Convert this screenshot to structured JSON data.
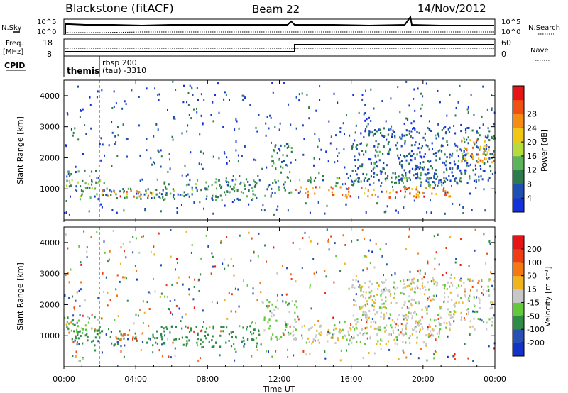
{
  "header": {
    "station": "Blackstone (fitACF)",
    "beam": "Beam 22",
    "date": "14/Nov/2012"
  },
  "nsky_panel": {
    "left_label": "N.Sky",
    "right_label": "N.Search",
    "top_tick": "10^5",
    "bottom_tick": "10^0"
  },
  "freq_panel": {
    "left_label_1": "Freq.",
    "left_label_2": "[MHz]",
    "left_tick_top": "18",
    "left_tick_bottom": "8",
    "right_label": "Nave",
    "right_tick_top": "60",
    "right_tick_bottom": "0"
  },
  "cpid_panel": {
    "label": "CPID",
    "programs": [
      {
        "name": "themis",
        "start_hour": 0.0
      },
      {
        "name": "rbsp 200",
        "start_hour": 2.0
      }
    ],
    "tau_text": "(tau) -3310"
  },
  "power_panel": {
    "ylabel": "Slant Range [km]",
    "cbar_label": "Power [dB]",
    "cbar_ticks": [
      "4",
      "8",
      "12",
      "16",
      "20",
      "24",
      "28"
    ],
    "cbar_colors": [
      "#1432dc",
      "#1e50b4",
      "#2d7a4a",
      "#5ab45a",
      "#b4dc3c",
      "#f0c814",
      "#f58c14",
      "#f05014",
      "#e61414"
    ]
  },
  "velocity_panel": {
    "ylabel": "Slant Range [km]",
    "cbar_label": "Velocity [m s⁻¹]",
    "cbar_ticks": [
      "200",
      "100",
      "50",
      "15",
      "-15",
      "-50",
      "-100",
      "-200"
    ],
    "cbar_colors": [
      "#1432c8",
      "#2850b4",
      "#2d8c46",
      "#64c83c",
      "#c8c8c8",
      "#f0b41e",
      "#f57814",
      "#f03c14",
      "#e61414"
    ]
  },
  "x_axis": {
    "label": "Time UT",
    "ticks": [
      "00:00",
      "04:00",
      "08:00",
      "12:00",
      "16:00",
      "20:00",
      "00:00"
    ]
  },
  "chart_data": [
    {
      "type": "heatmap",
      "title": "Power",
      "xlabel": "Time UT",
      "ylabel": "Slant Range [km]",
      "xlim": [
        0,
        24
      ],
      "ylim": [
        0,
        4500
      ],
      "y_ticks": [
        1000,
        2000,
        3000,
        4000
      ],
      "colorbar": {
        "label": "Power [dB]",
        "range": [
          0,
          32
        ],
        "ticks": [
          4,
          8,
          12,
          16,
          20,
          24,
          28
        ]
      },
      "bands": [
        {
          "t0": 0.0,
          "t1": 2.0,
          "r0": 1050,
          "r1": 1650,
          "level": 12
        },
        {
          "t0": 0.4,
          "t1": 4.8,
          "r0": 700,
          "r1": 1050,
          "level": 10
        },
        {
          "t0": 2.0,
          "t1": 5.0,
          "r0": 780,
          "r1": 1000,
          "level": 24
        },
        {
          "t0": 5.0,
          "t1": 11.3,
          "r0": 650,
          "r1": 1350,
          "level": 10
        },
        {
          "t0": 11.5,
          "t1": 12.7,
          "r0": 900,
          "r1": 2500,
          "level": 8
        },
        {
          "t0": 12.8,
          "t1": 21.5,
          "r0": 750,
          "r1": 1100,
          "level": 24
        },
        {
          "t0": 12.8,
          "t1": 21.5,
          "r0": 1100,
          "r1": 1400,
          "level": 10
        },
        {
          "t0": 16.0,
          "t1": 24.0,
          "r0": 1200,
          "r1": 3000,
          "level": 6
        },
        {
          "t0": 22.0,
          "t1": 24.0,
          "r0": 1800,
          "r1": 2700,
          "level": 22
        }
      ]
    },
    {
      "type": "heatmap",
      "title": "Velocity",
      "xlabel": "Time UT",
      "ylabel": "Slant Range [km]",
      "xlim": [
        0,
        24
      ],
      "ylim": [
        0,
        4500
      ],
      "y_ticks": [
        1000,
        2000,
        3000,
        4000
      ],
      "colorbar": {
        "label": "Velocity [m s-1]",
        "range": [
          -250,
          250
        ],
        "ticks": [
          200,
          100,
          50,
          15,
          -15,
          -50,
          -100,
          -200
        ]
      },
      "bands": [
        {
          "t0": 0.0,
          "t1": 2.0,
          "r0": 1050,
          "r1": 1650,
          "level": 40
        },
        {
          "t0": 0.4,
          "t1": 5.0,
          "r0": 700,
          "r1": 1200,
          "level": 100
        },
        {
          "t0": 2.5,
          "t1": 4.0,
          "r0": 900,
          "r1": 1150,
          "level": -100
        },
        {
          "t0": 5.0,
          "t1": 11.0,
          "r0": 650,
          "r1": 1350,
          "level": 80
        },
        {
          "t0": 11.0,
          "t1": 13.0,
          "r0": 900,
          "r1": 2200,
          "level": 30
        },
        {
          "t0": 13.0,
          "t1": 21.0,
          "r0": 750,
          "r1": 1400,
          "level": 0
        },
        {
          "t0": 16.0,
          "t1": 24.0,
          "r0": 1200,
          "r1": 2900,
          "level": 0
        }
      ]
    }
  ]
}
